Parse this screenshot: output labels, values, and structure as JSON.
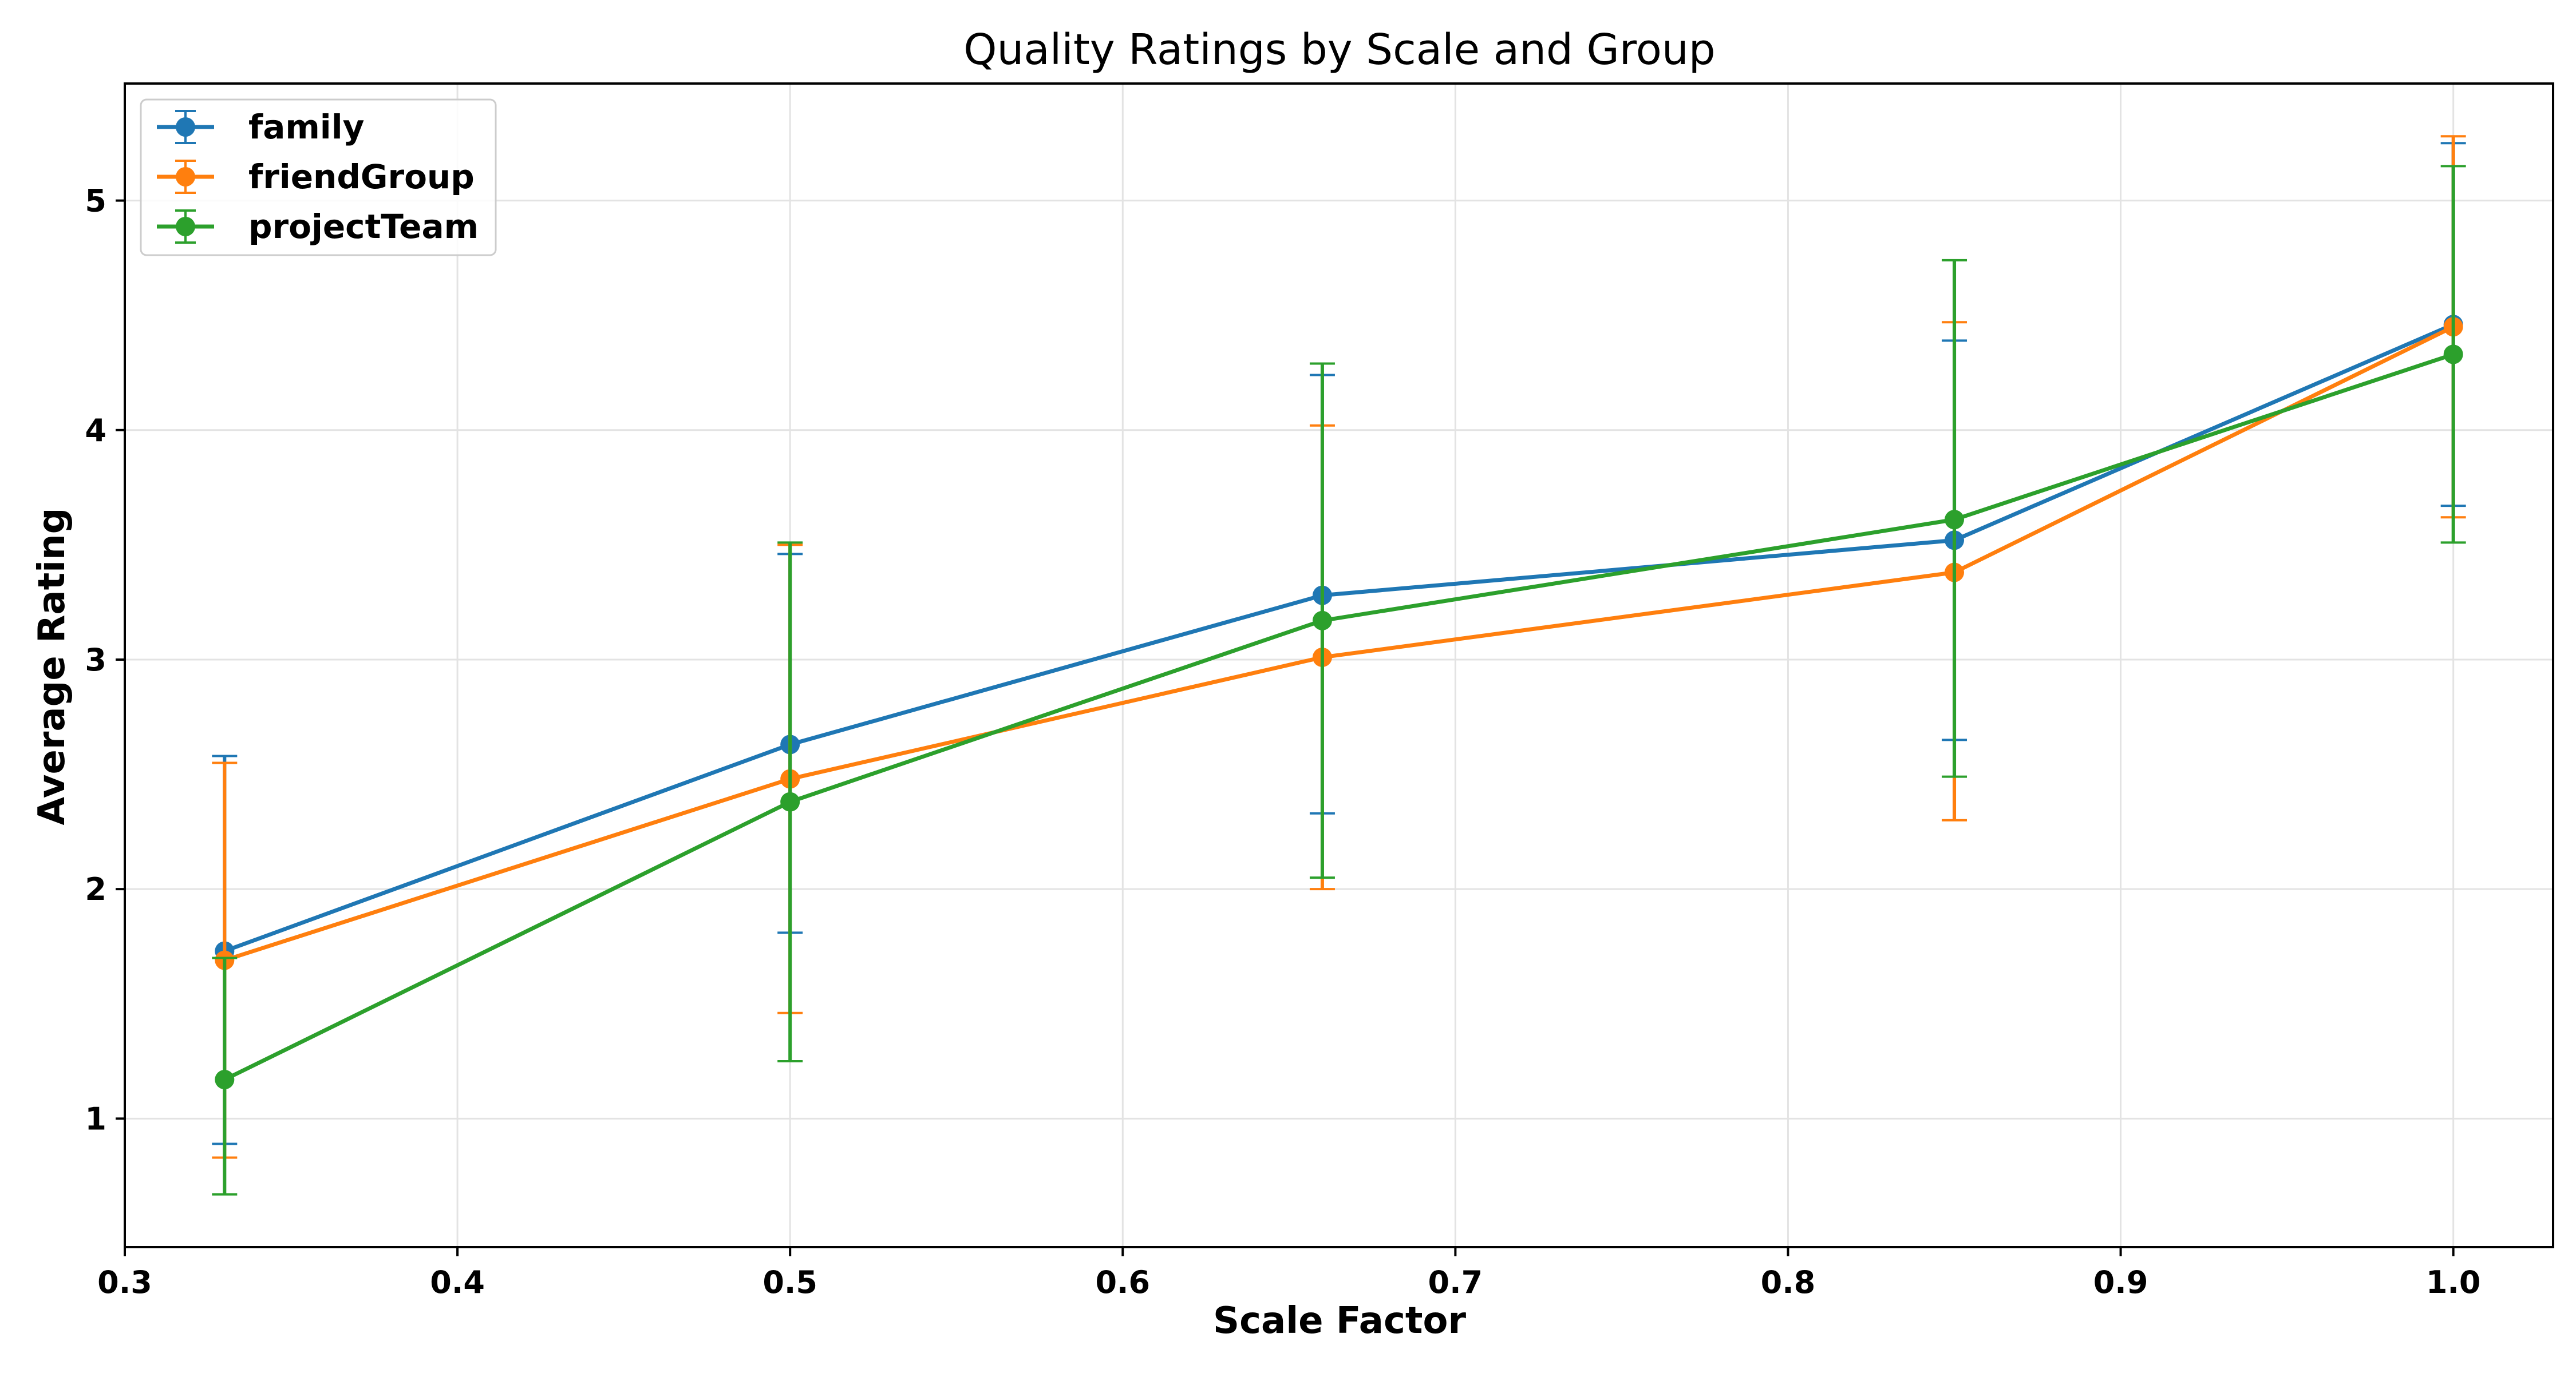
{
  "chart_data": {
    "type": "line",
    "title": "Quality Ratings by Scale and Group",
    "xlabel": "Scale Factor",
    "ylabel": "Average Rating",
    "x": [
      0.33,
      0.5,
      0.66,
      0.85,
      1.0
    ],
    "xlim": [
      0.3,
      1.03
    ],
    "ylim": [
      0.44,
      5.51
    ],
    "xticks": [
      0.3,
      0.4,
      0.5,
      0.6,
      0.7,
      0.8,
      0.9,
      1.0
    ],
    "xtick_labels": [
      "0.3",
      "0.4",
      "0.5",
      "0.6",
      "0.7",
      "0.8",
      "0.9",
      "1.0"
    ],
    "yticks": [
      1,
      2,
      3,
      4,
      5
    ],
    "ytick_labels": [
      "1",
      "2",
      "3",
      "4",
      "5"
    ],
    "grid": true,
    "legend_position": "top-left",
    "error_bars": true,
    "series": [
      {
        "name": "family",
        "color": "#1f77b4",
        "values": [
          1.73,
          2.63,
          3.28,
          3.52,
          4.46
        ],
        "yerr_low": [
          0.89,
          1.81,
          2.33,
          2.65,
          3.67
        ],
        "yerr_high": [
          2.58,
          3.46,
          4.24,
          4.39,
          5.25
        ]
      },
      {
        "name": "friendGroup",
        "color": "#ff7f0e",
        "values": [
          1.69,
          2.48,
          3.01,
          3.38,
          4.45
        ],
        "yerr_low": [
          0.83,
          1.46,
          2.0,
          2.3,
          3.62
        ],
        "yerr_high": [
          2.55,
          3.5,
          4.02,
          4.47,
          5.28
        ]
      },
      {
        "name": "projectTeam",
        "color": "#2ca02c",
        "values": [
          1.17,
          2.38,
          3.17,
          3.61,
          4.33
        ],
        "yerr_low": [
          0.67,
          1.25,
          2.05,
          2.49,
          3.51
        ],
        "yerr_high": [
          1.7,
          3.51,
          4.29,
          4.74,
          5.15
        ]
      }
    ]
  }
}
